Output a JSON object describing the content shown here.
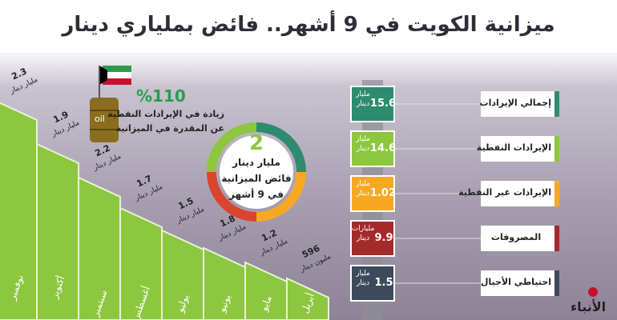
{
  "header": {
    "title": "ميزانية الكويت في 9 أشهر.. فائض بملياري دينار"
  },
  "callout": {
    "value": "%110",
    "line1": "زيادة في الإيرادات النفطية",
    "line2": "عن المقدرة في الميزانية",
    "barrel": "oil"
  },
  "center": {
    "value": 2,
    "unit": "مليار دينار",
    "line1": "فائض الميزانية",
    "line2": "في 9 أشهر"
  },
  "items": [
    {
      "label": "إجمالي الإيرادات",
      "value": 15.6,
      "unit": "مليار دينار"
    },
    {
      "label": "الإيرادات النفطية",
      "value": 14.6,
      "unit": "مليار دينار"
    },
    {
      "label": "الإيرادات غير النفطية",
      "value": 1.02,
      "unit": "مليار دينار"
    },
    {
      "label": "المصروفات",
      "value": 9.9,
      "unit": "مليارات دينار"
    },
    {
      "label": "احتياطي الأجيال",
      "value": 1.5,
      "unit": "مليار دينار"
    }
  ],
  "months": [
    {
      "name": "أبريل",
      "value": 596,
      "unit": "مليون دينار"
    },
    {
      "name": "مايو",
      "value": 1.2,
      "unit": "مليار دينار"
    },
    {
      "name": "يونيو",
      "value": 1.8,
      "unit": "مليار دينار"
    },
    {
      "name": "يوليو",
      "value": 1.5,
      "unit": "مليار دينار"
    },
    {
      "name": "أغسطس",
      "value": 1.7,
      "unit": "مليار دينار"
    },
    {
      "name": "سبتمبر",
      "value": 2.2,
      "unit": "مليار دينار"
    },
    {
      "name": "أكتوبر",
      "value": 1.9,
      "unit": "مليار دينار"
    },
    {
      "name": "نوفمبر",
      "value": 2.3,
      "unit": "مليار دينار"
    }
  ],
  "logo": "الأنباء"
}
